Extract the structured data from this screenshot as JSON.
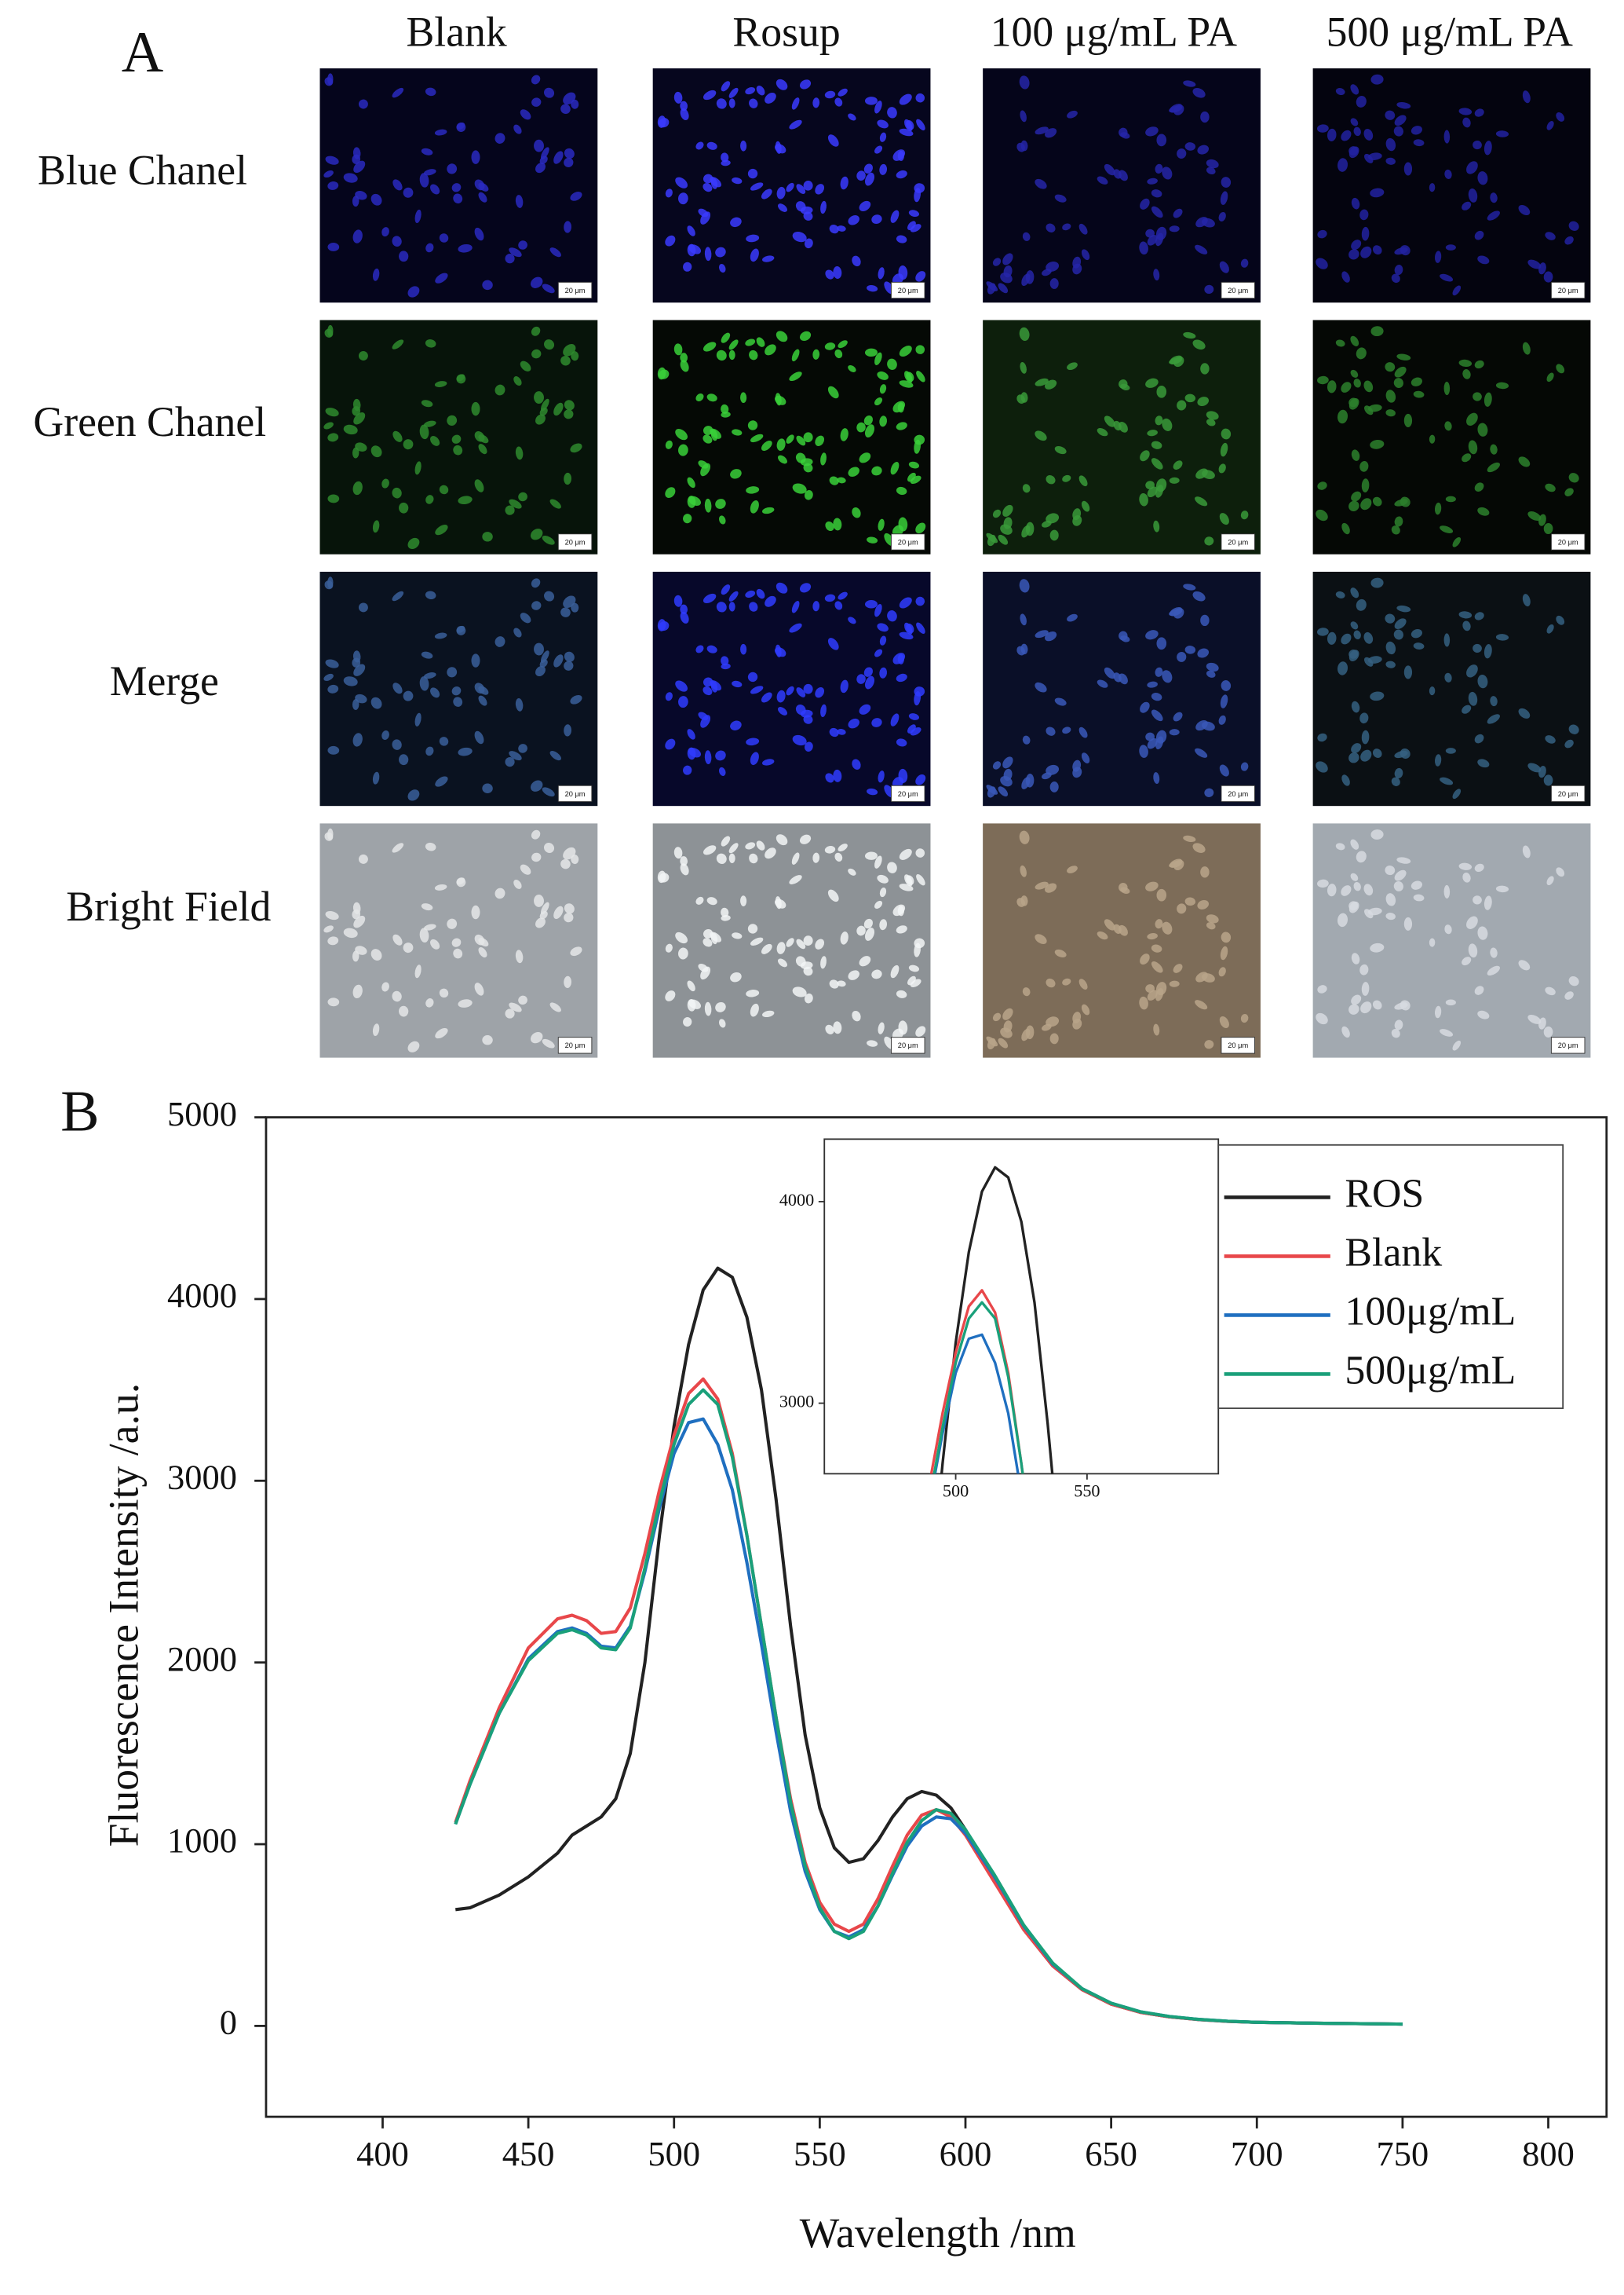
{
  "panel_a": {
    "label": "A",
    "columns": [
      "Blank",
      "Rosup",
      "100 μg/mL PA",
      "500 μg/mL PA"
    ],
    "rows": [
      "Blue Chanel",
      "Green Chanel",
      "Merge",
      "Bright Field"
    ],
    "scale_bar": "20 μm"
  },
  "chart_data": {
    "type": "line",
    "panel_label": "B",
    "x_label": "Wavelength /nm",
    "y_label": "Fluorescence Intensity /a.u.",
    "x": [
      425,
      430,
      440,
      450,
      460,
      465,
      470,
      475,
      480,
      485,
      490,
      495,
      500,
      505,
      510,
      515,
      520,
      525,
      530,
      535,
      540,
      545,
      550,
      555,
      560,
      565,
      570,
      575,
      580,
      585,
      590,
      595,
      600,
      610,
      620,
      630,
      640,
      650,
      660,
      670,
      680,
      690,
      700,
      720,
      750
    ],
    "series": [
      {
        "name": "ROS",
        "color": "#222222",
        "values": [
          640,
          650,
          720,
          820,
          950,
          1050,
          1100,
          1150,
          1250,
          1500,
          2000,
          2700,
          3300,
          3750,
          4050,
          4170,
          4120,
          3900,
          3500,
          2900,
          2200,
          1600,
          1200,
          980,
          900,
          920,
          1020,
          1150,
          1250,
          1290,
          1270,
          1200,
          1080,
          800,
          530,
          330,
          200,
          120,
          75,
          50,
          35,
          25,
          20,
          15,
          10
        ]
      },
      {
        "name": "Blank",
        "color": "#e8474a",
        "values": [
          1120,
          1350,
          1750,
          2080,
          2240,
          2260,
          2230,
          2160,
          2170,
          2300,
          2600,
          2950,
          3250,
          3480,
          3560,
          3450,
          3150,
          2700,
          2200,
          1700,
          1250,
          900,
          680,
          560,
          520,
          560,
          700,
          880,
          1050,
          1160,
          1190,
          1150,
          1050,
          790,
          530,
          330,
          200,
          120,
          75,
          50,
          35,
          25,
          20,
          15,
          10
        ]
      },
      {
        "name": "100μg/mL",
        "color": "#1f6fc0",
        "values": [
          1110,
          1330,
          1720,
          2020,
          2170,
          2190,
          2160,
          2090,
          2080,
          2200,
          2500,
          2850,
          3150,
          3320,
          3340,
          3200,
          2950,
          2550,
          2100,
          1620,
          1180,
          850,
          640,
          520,
          490,
          530,
          660,
          830,
          990,
          1100,
          1150,
          1140,
          1060,
          820,
          550,
          340,
          205,
          125,
          78,
          52,
          36,
          26,
          20,
          15,
          10
        ]
      },
      {
        "name": "500μg/mL",
        "color": "#1aa07a",
        "values": [
          1110,
          1330,
          1720,
          2010,
          2160,
          2180,
          2150,
          2080,
          2070,
          2190,
          2520,
          2880,
          3200,
          3420,
          3500,
          3420,
          3130,
          2700,
          2200,
          1700,
          1230,
          880,
          650,
          520,
          480,
          520,
          660,
          840,
          1010,
          1130,
          1190,
          1170,
          1080,
          830,
          555,
          345,
          205,
          125,
          78,
          52,
          36,
          26,
          20,
          15,
          10
        ]
      }
    ],
    "xlim": [
      360,
      820
    ],
    "xticks": [
      400,
      450,
      500,
      550,
      600,
      650,
      700,
      750,
      800
    ],
    "ylim": [
      -500,
      5000
    ],
    "yticks": [
      0,
      1000,
      2000,
      3000,
      4000,
      5000
    ],
    "legend": "upper right",
    "inset": {
      "xlim": [
        450,
        600
      ],
      "xticks": [
        500,
        550
      ],
      "ylim": [
        2650,
        4310
      ],
      "yticks": [
        3000,
        4000
      ]
    }
  }
}
